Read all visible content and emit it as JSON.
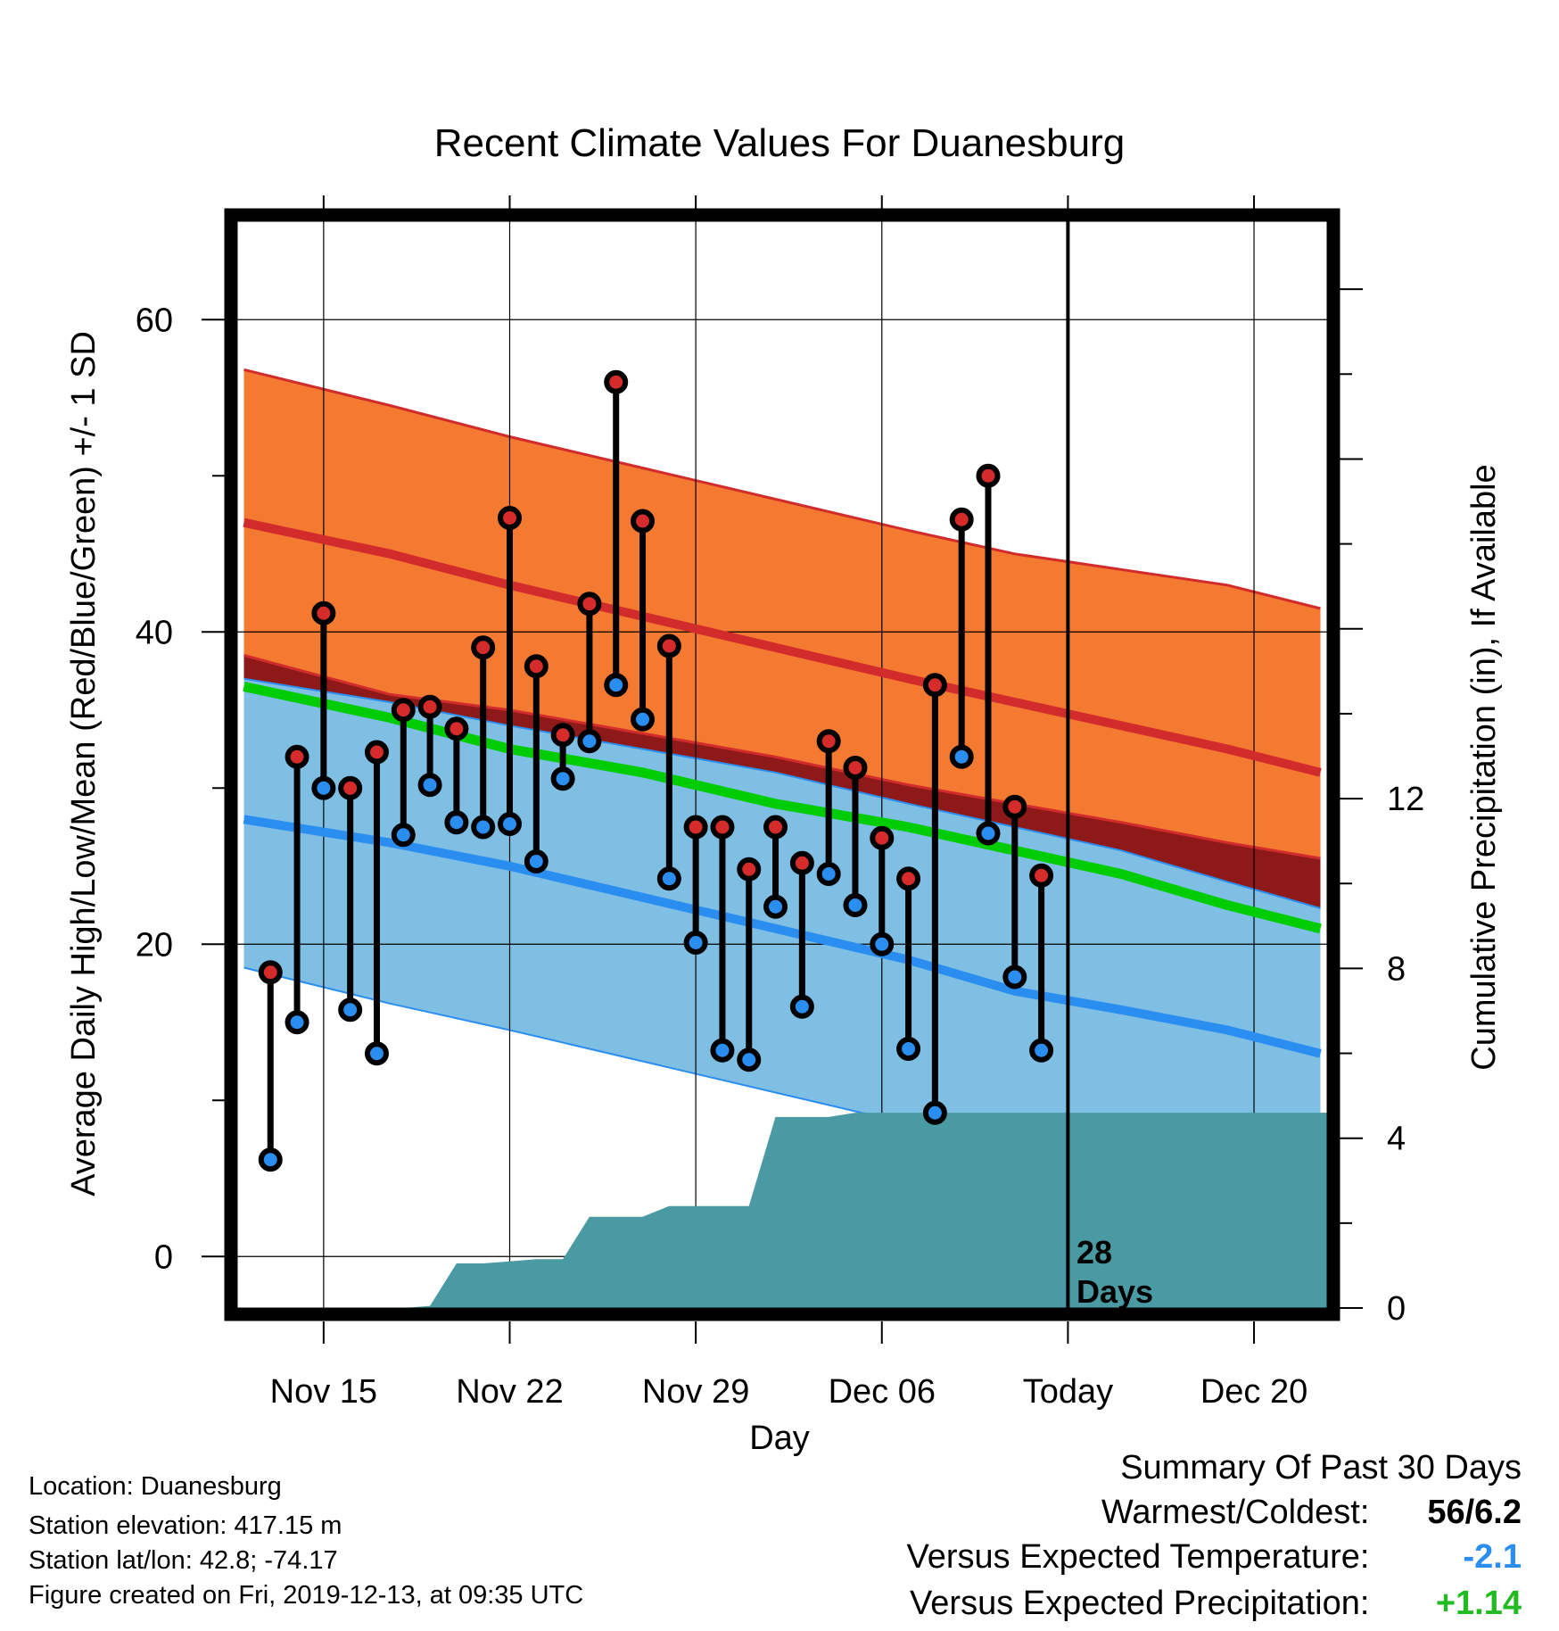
{
  "chart_data": {
    "type": "line",
    "title": "Recent Climate Values For Duanesburg",
    "xlabel": "Day",
    "ylabel": "Average Daily High/Low/Mean (Red/Blue/Green) +/- 1 SD",
    "y2label": "Cumulative Precipitation (in), If Available",
    "x_tick_labels": [
      "Nov 15",
      "Nov 22",
      "Nov 29",
      "Dec 06",
      "Today",
      "Dec 20"
    ],
    "x_tick_days": [
      0,
      7,
      14,
      21,
      28,
      35
    ],
    "xlim": [
      -3.25,
      37.75
    ],
    "ylim": [
      -3.3,
      66.3
    ],
    "y_ticks": [
      0,
      20,
      40,
      60
    ],
    "y2lim": [
      0,
      25.6
    ],
    "y2_ticks": [
      0,
      4,
      8,
      12
    ],
    "today_marker": {
      "day": 28,
      "label_line1": "28",
      "label_line2": "Days"
    },
    "normals": {
      "days": [
        -3,
        2.5,
        7,
        12,
        17,
        22,
        26,
        30,
        34,
        37.5
      ],
      "high_mean": [
        47,
        45,
        43,
        41,
        39,
        37,
        35.5,
        34,
        32.5,
        31
      ],
      "high_upper": [
        56.8,
        54.5,
        52.5,
        50.5,
        48.5,
        46.5,
        45,
        44,
        43,
        41.5
      ],
      "high_lower": [
        38.5,
        36,
        35,
        33.5,
        32,
        30.2,
        29,
        27.8,
        26.5,
        25.5
      ],
      "avg_mean": [
        36.5,
        34.5,
        32.5,
        31,
        29,
        27.5,
        26,
        24.5,
        22.5,
        21
      ],
      "low_mean": [
        28,
        26.5,
        25,
        23,
        21,
        19,
        17,
        15.8,
        14.5,
        13
      ],
      "low_upper": [
        37,
        35.5,
        34,
        32.5,
        31,
        29,
        27.5,
        26,
        24,
        22.3
      ],
      "low_lower": [
        18.5,
        16.2,
        14.5,
        12.5,
        10.5,
        8.5,
        6.5,
        4.5,
        2.5,
        0.5
      ]
    },
    "daily": {
      "days": [
        -2,
        -1,
        0,
        1,
        2,
        3,
        4,
        5,
        6,
        7,
        8,
        9,
        10,
        11,
        12,
        13,
        14,
        15,
        16,
        17,
        18,
        19,
        20,
        21,
        22,
        23,
        24,
        25,
        26,
        27
      ],
      "high": [
        18.2,
        32,
        41.2,
        30,
        32.3,
        35,
        35.2,
        33.8,
        39,
        47.3,
        37.8,
        33.4,
        41.8,
        56,
        47.1,
        39.1,
        27.5,
        27.5,
        24.8,
        27.5,
        25.2,
        33,
        31.3,
        26.8,
        24.2,
        36.6,
        47.2,
        50,
        28.8,
        24.4
      ],
      "low": [
        6.2,
        15,
        30,
        15.8,
        13,
        27,
        30.2,
        27.8,
        27.5,
        27.7,
        25.3,
        30.6,
        33,
        36.6,
        34.4,
        24.2,
        20.1,
        13.2,
        12.6,
        22.4,
        16,
        24.5,
        22.5,
        20,
        13.3,
        9.2,
        32,
        27.1,
        17.9,
        13.2
      ]
    },
    "precip": {
      "days": [
        0,
        3,
        4,
        5,
        6,
        7,
        8,
        9,
        10,
        11,
        12,
        13,
        14,
        15,
        16,
        17,
        18,
        19,
        20,
        21,
        22,
        23,
        24,
        25,
        26,
        27,
        28,
        30,
        35,
        37.75
      ],
      "cumulative": [
        0,
        0,
        0.05,
        1.05,
        1.05,
        1.1,
        1.15,
        1.15,
        2.15,
        2.15,
        2.15,
        2.4,
        2.4,
        2.4,
        2.4,
        4.5,
        4.5,
        4.5,
        4.6,
        4.6,
        4.6,
        4.6,
        4.6,
        4.6,
        4.6,
        4.6,
        4.6,
        4.6,
        4.6,
        4.6
      ],
      "cumulative_note": ""
    },
    "colors": {
      "high_band": "#f47a31",
      "high_line": "#d22b2b",
      "overlap_band": "#8e1919",
      "low_band": "#80bfe4",
      "low_line": "#2a8ef0",
      "mean_line": "#00cc00",
      "precip": "#4a9aa3",
      "high_dot": "#d52b2b",
      "low_dot": "#2a8ef0"
    }
  },
  "info": {
    "location": "Location: Duanesburg",
    "elevation": "Station elevation: 417.15 m",
    "latlon": "Station lat/lon: 42.8; -74.17",
    "created": "Figure created on Fri, 2019-12-13, at 09:35 UTC"
  },
  "summary": {
    "heading": "Summary Of Past 30 Days",
    "warm_cold_label": "Warmest/Coldest:",
    "warm_cold_value": "56/6.2",
    "temp_label": "Versus Expected Temperature:",
    "temp_value": "-2.1",
    "temp_color": "#2a8ef0",
    "precip_label": "Versus Expected Precipitation:",
    "precip_value": "+1.14",
    "precip_color": "#22bb22"
  }
}
